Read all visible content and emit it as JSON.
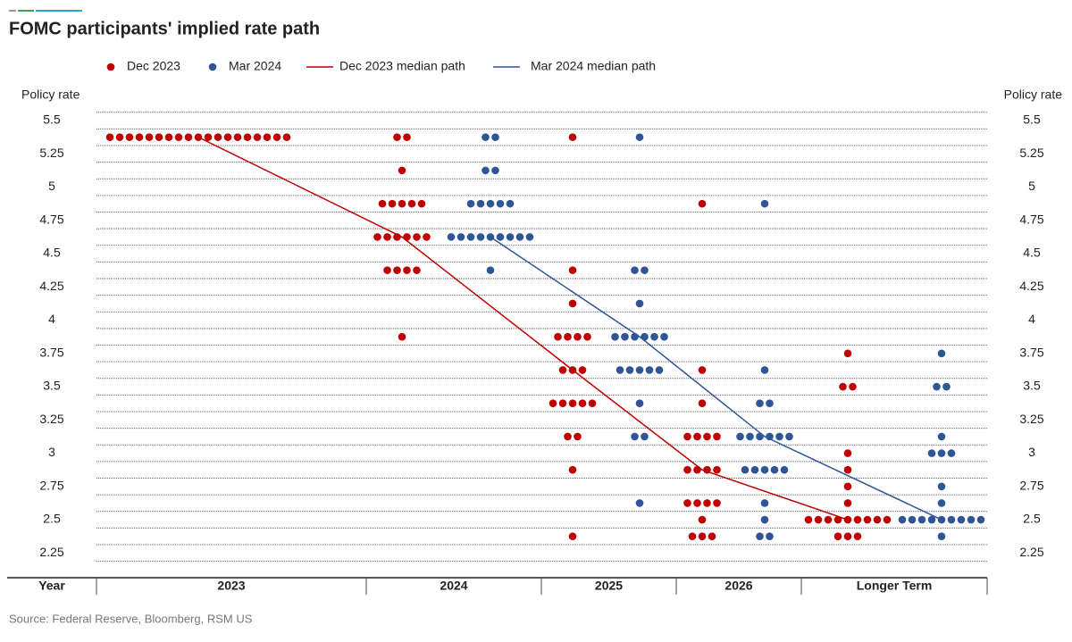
{
  "chart_data": {
    "type": "dot",
    "title": "FOMC participants' implied rate path",
    "y_axis_label": "Policy rate",
    "x_axis_label": "Year",
    "source": "Source: Federal Reserve, Bloomberg, RSM US",
    "categories": [
      "2023",
      "2024",
      "2025",
      "2026",
      "Longer Term"
    ],
    "ylim": [
      2.1875,
      5.5625
    ],
    "yticks": [
      2.25,
      2.5,
      2.75,
      3,
      3.25,
      3.5,
      3.75,
      4,
      4.25,
      4.5,
      4.75,
      5,
      5.25,
      5.5
    ],
    "grid": true,
    "series": [
      {
        "name": "Dec 2023",
        "color": "#c00000",
        "values": [
          [
            5.375,
            5.375,
            5.375,
            5.375,
            5.375,
            5.375,
            5.375,
            5.375,
            5.375,
            5.375,
            5.375,
            5.375,
            5.375,
            5.375,
            5.375,
            5.375,
            5.375,
            5.375,
            5.375
          ],
          [
            5.375,
            5.375,
            5.125,
            4.875,
            4.875,
            4.875,
            4.875,
            4.875,
            4.625,
            4.625,
            4.625,
            4.625,
            4.625,
            4.625,
            4.375,
            4.375,
            4.375,
            4.375,
            3.875
          ],
          [
            5.375,
            4.375,
            4.125,
            3.875,
            3.875,
            3.875,
            3.875,
            3.625,
            3.625,
            3.625,
            3.375,
            3.375,
            3.375,
            3.375,
            3.375,
            3.125,
            3.125,
            2.875,
            2.375
          ],
          [
            4.875,
            3.625,
            3.375,
            3.125,
            3.125,
            3.125,
            3.125,
            2.875,
            2.875,
            2.875,
            2.875,
            2.625,
            2.625,
            2.625,
            2.625,
            2.5,
            2.375,
            2.375,
            2.375
          ],
          [
            3.75,
            3.5,
            3.5,
            3,
            2.875,
            2.75,
            2.625,
            2.5,
            2.5,
            2.5,
            2.5,
            2.5,
            2.5,
            2.5,
            2.5,
            2.5,
            2.375,
            2.375,
            2.375
          ]
        ]
      },
      {
        "name": "Mar 2024",
        "color": "#2f5597",
        "values": [
          [],
          [
            5.375,
            5.375,
            5.125,
            5.125,
            4.875,
            4.875,
            4.875,
            4.875,
            4.875,
            4.625,
            4.625,
            4.625,
            4.625,
            4.625,
            4.625,
            4.625,
            4.625,
            4.625,
            4.375
          ],
          [
            5.375,
            4.375,
            4.375,
            4.125,
            3.875,
            3.875,
            3.875,
            3.875,
            3.875,
            3.875,
            3.625,
            3.625,
            3.625,
            3.625,
            3.625,
            3.375,
            3.125,
            3.125,
            2.625
          ],
          [
            4.875,
            3.625,
            3.375,
            3.375,
            3.125,
            3.125,
            3.125,
            3.125,
            3.125,
            3.125,
            2.875,
            2.875,
            2.875,
            2.875,
            2.875,
            2.625,
            2.5,
            2.375,
            2.375
          ],
          [
            3.75,
            3.5,
            3.5,
            3.125,
            3,
            3,
            3,
            2.75,
            2.625,
            2.5,
            2.5,
            2.5,
            2.5,
            2.5,
            2.5,
            2.5,
            2.5,
            2.5,
            2.375
          ]
        ]
      },
      {
        "name": "Dec 2023 median path",
        "color": "#c00000",
        "values": [
          5.375,
          4.625,
          3.625,
          2.875,
          2.5
        ]
      },
      {
        "name": "Mar 2024 median path",
        "color": "#2f5597",
        "values": [
          null,
          4.625,
          3.875,
          3.125,
          2.5
        ]
      }
    ]
  }
}
